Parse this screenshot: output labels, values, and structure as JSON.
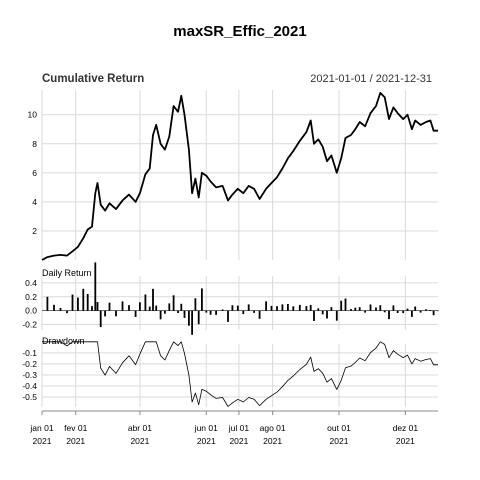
{
  "chart_data": {
    "type": "line",
    "title": "maxSR_Effic_2021",
    "date_range": "2021-01-01 / 2021-12-31",
    "x_ticks": [
      {
        "date": "2021-01-01",
        "label": "jan 01",
        "year": "2021"
      },
      {
        "date": "2021-02-01",
        "label": "fev 01",
        "year": "2021"
      },
      {
        "date": "2021-04-01",
        "label": "abr 01",
        "year": "2021"
      },
      {
        "date": "2021-06-01",
        "label": "jun 01",
        "year": "2021"
      },
      {
        "date": "2021-07-01",
        "label": "jul 01",
        "year": "2021"
      },
      {
        "date": "2021-08-01",
        "label": "ago 01",
        "year": "2021"
      },
      {
        "date": "2021-10-01",
        "label": "out 01",
        "year": "2021"
      },
      {
        "date": "2021-12-01",
        "label": "dez 01",
        "year": "2021"
      }
    ],
    "x_range": [
      "2021-01-01",
      "2021-12-31"
    ],
    "panels": [
      {
        "id": "cumulative",
        "label": "Cumulative Return",
        "ylim": [
          0,
          11.7
        ],
        "yticks": [
          2,
          4,
          6,
          8,
          10
        ],
        "points": [
          [
            "2021-01-01",
            0.0
          ],
          [
            "2021-01-06",
            0.2
          ],
          [
            "2021-01-12",
            0.3
          ],
          [
            "2021-01-18",
            0.35
          ],
          [
            "2021-01-24",
            0.3
          ],
          [
            "2021-01-29",
            0.6
          ],
          [
            "2021-02-03",
            0.9
          ],
          [
            "2021-02-08",
            1.5
          ],
          [
            "2021-02-12",
            2.1
          ],
          [
            "2021-02-16",
            2.3
          ],
          [
            "2021-02-19",
            4.6
          ],
          [
            "2021-02-21",
            5.3
          ],
          [
            "2021-02-24",
            3.8
          ],
          [
            "2021-02-28",
            3.4
          ],
          [
            "2021-03-04",
            3.9
          ],
          [
            "2021-03-10",
            3.5
          ],
          [
            "2021-03-16",
            4.1
          ],
          [
            "2021-03-22",
            4.5
          ],
          [
            "2021-03-28",
            4.0
          ],
          [
            "2021-04-01",
            4.6
          ],
          [
            "2021-04-06",
            5.9
          ],
          [
            "2021-04-10",
            6.3
          ],
          [
            "2021-04-13",
            8.6
          ],
          [
            "2021-04-16",
            9.3
          ],
          [
            "2021-04-20",
            8.0
          ],
          [
            "2021-04-24",
            7.6
          ],
          [
            "2021-04-28",
            8.5
          ],
          [
            "2021-05-02",
            10.6
          ],
          [
            "2021-05-06",
            10.2
          ],
          [
            "2021-05-09",
            11.3
          ],
          [
            "2021-05-12",
            10.0
          ],
          [
            "2021-05-16",
            7.6
          ],
          [
            "2021-05-19",
            4.6
          ],
          [
            "2021-05-22",
            5.6
          ],
          [
            "2021-05-25",
            4.3
          ],
          [
            "2021-05-28",
            6.0
          ],
          [
            "2021-06-01",
            5.8
          ],
          [
            "2021-06-05",
            5.4
          ],
          [
            "2021-06-10",
            5.0
          ],
          [
            "2021-06-16",
            5.1
          ],
          [
            "2021-06-21",
            4.1
          ],
          [
            "2021-06-25",
            4.5
          ],
          [
            "2021-06-30",
            4.9
          ],
          [
            "2021-07-05",
            4.6
          ],
          [
            "2021-07-10",
            5.1
          ],
          [
            "2021-07-15",
            4.9
          ],
          [
            "2021-07-20",
            4.2
          ],
          [
            "2021-07-26",
            4.9
          ],
          [
            "2021-07-31",
            5.3
          ],
          [
            "2021-08-05",
            5.7
          ],
          [
            "2021-08-10",
            6.3
          ],
          [
            "2021-08-15",
            7.0
          ],
          [
            "2021-08-20",
            7.5
          ],
          [
            "2021-08-26",
            8.2
          ],
          [
            "2021-09-01",
            8.8
          ],
          [
            "2021-09-05",
            9.6
          ],
          [
            "2021-09-08",
            8.0
          ],
          [
            "2021-09-12",
            8.3
          ],
          [
            "2021-09-16",
            7.8
          ],
          [
            "2021-09-20",
            6.8
          ],
          [
            "2021-09-24",
            7.2
          ],
          [
            "2021-09-29",
            6.0
          ],
          [
            "2021-10-03",
            7.0
          ],
          [
            "2021-10-07",
            8.4
          ],
          [
            "2021-10-12",
            8.6
          ],
          [
            "2021-10-16",
            9.0
          ],
          [
            "2021-10-20",
            9.5
          ],
          [
            "2021-10-25",
            9.2
          ],
          [
            "2021-10-30",
            10.1
          ],
          [
            "2021-11-04",
            10.6
          ],
          [
            "2021-11-08",
            11.5
          ],
          [
            "2021-11-12",
            11.2
          ],
          [
            "2021-11-16",
            9.7
          ],
          [
            "2021-11-20",
            10.5
          ],
          [
            "2021-11-24",
            10.1
          ],
          [
            "2021-11-29",
            9.7
          ],
          [
            "2021-12-03",
            10.0
          ],
          [
            "2021-12-07",
            9.0
          ],
          [
            "2021-12-10",
            9.6
          ],
          [
            "2021-12-15",
            9.3
          ],
          [
            "2021-12-20",
            9.5
          ],
          [
            "2021-12-24",
            9.6
          ],
          [
            "2021-12-27",
            8.9
          ],
          [
            "2021-12-31",
            8.9
          ]
        ]
      },
      {
        "id": "daily",
        "label": "Daily Return",
        "ylim": [
          -0.28,
          0.5
        ],
        "yticks": [
          -0.2,
          0.0,
          0.2,
          0.4
        ],
        "tick_labels": [
          "-0.2",
          "0.0",
          "0.2",
          "0.4"
        ]
      },
      {
        "id": "drawdown",
        "label": "Drawdown",
        "ylim": [
          -0.59,
          -0.02
        ],
        "yticks": [
          -0.1,
          -0.2,
          -0.3,
          -0.4,
          -0.5
        ],
        "tick_labels": [
          "-0.1",
          "-0.2",
          "-0.3",
          "-0.4",
          "-0.5"
        ]
      }
    ]
  }
}
